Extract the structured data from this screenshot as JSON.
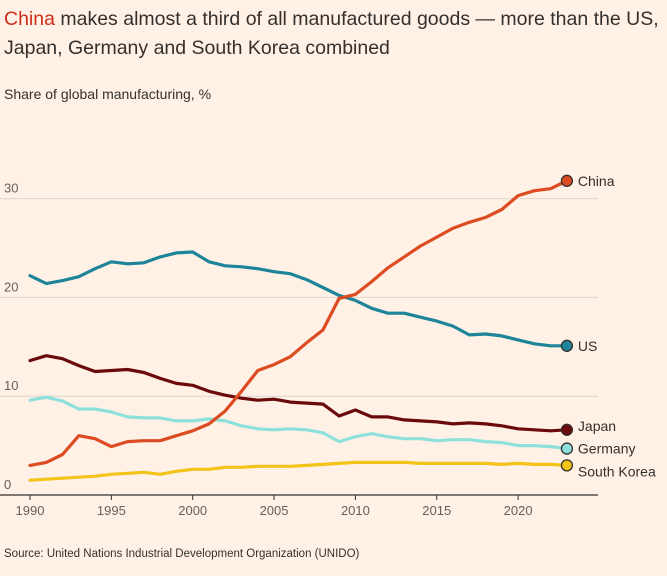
{
  "header": {
    "title_highlight": "China",
    "title_rest": " makes almost a third of all manufactured goods — more than the US, Japan, Germany and South Korea combined",
    "subtitle": "Share of global manufacturing, %"
  },
  "footer": {
    "source": "Source: United Nations Industrial Development Organization (UNIDO)"
  },
  "chart_data": {
    "type": "line",
    "ylabel": "Share of global manufacturing, %",
    "xlim": [
      1990,
      2024
    ],
    "ylim": [
      0,
      32
    ],
    "grid": "horizontal",
    "x_ticks": [
      1990,
      1995,
      2000,
      2005,
      2010,
      2015,
      2020
    ],
    "y_ticks": [
      0,
      10,
      20,
      30
    ],
    "x": [
      1990,
      1991,
      1992,
      1993,
      1994,
      1995,
      1996,
      1997,
      1998,
      1999,
      2000,
      2001,
      2002,
      2003,
      2004,
      2005,
      2006,
      2007,
      2008,
      2009,
      2010,
      2011,
      2012,
      2013,
      2014,
      2015,
      2016,
      2017,
      2018,
      2019,
      2020,
      2021,
      2022,
      2023
    ],
    "series": [
      {
        "name": "China",
        "color": "#dd4b22",
        "values": [
          3.0,
          3.3,
          4.1,
          6.0,
          5.7,
          4.9,
          5.4,
          5.5,
          5.5,
          6.0,
          6.5,
          7.2,
          8.5,
          10.5,
          12.6,
          13.2,
          14.0,
          15.4,
          16.7,
          19.9,
          20.3,
          21.6,
          23.0,
          24.1,
          25.2,
          26.1,
          27.0,
          27.6,
          28.1,
          28.9,
          30.3,
          30.8,
          31.0,
          31.8
        ]
      },
      {
        "name": "US",
        "color": "#1e8499",
        "values": [
          22.2,
          21.4,
          21.7,
          22.1,
          22.9,
          23.6,
          23.4,
          23.5,
          24.1,
          24.5,
          24.6,
          23.6,
          23.2,
          23.1,
          22.9,
          22.6,
          22.4,
          21.8,
          21.0,
          20.2,
          19.7,
          18.9,
          18.4,
          18.4,
          18.0,
          17.6,
          17.1,
          16.2,
          16.3,
          16.1,
          15.7,
          15.3,
          15.1,
          15.1
        ]
      },
      {
        "name": "Japan",
        "color": "#6b0a0a",
        "values": [
          13.6,
          14.1,
          13.8,
          13.1,
          12.5,
          12.6,
          12.7,
          12.4,
          11.8,
          11.3,
          11.1,
          10.5,
          10.1,
          9.8,
          9.6,
          9.7,
          9.4,
          9.3,
          9.2,
          8.0,
          8.6,
          7.9,
          7.9,
          7.6,
          7.5,
          7.4,
          7.2,
          7.3,
          7.2,
          7.0,
          6.7,
          6.6,
          6.5,
          6.6
        ]
      },
      {
        "name": "Germany",
        "color": "#8ee1db",
        "values": [
          9.6,
          9.9,
          9.5,
          8.7,
          8.7,
          8.4,
          7.9,
          7.8,
          7.8,
          7.5,
          7.5,
          7.7,
          7.5,
          7.0,
          6.7,
          6.6,
          6.7,
          6.6,
          6.3,
          5.4,
          5.9,
          6.2,
          5.9,
          5.7,
          5.7,
          5.5,
          5.6,
          5.6,
          5.4,
          5.3,
          5.0,
          5.0,
          4.9,
          4.7
        ]
      },
      {
        "name": "South Korea",
        "color": "#f2c318",
        "values": [
          1.5,
          1.6,
          1.7,
          1.8,
          1.9,
          2.1,
          2.2,
          2.3,
          2.1,
          2.4,
          2.6,
          2.6,
          2.8,
          2.8,
          2.9,
          2.9,
          2.9,
          3.0,
          3.1,
          3.2,
          3.3,
          3.3,
          3.3,
          3.3,
          3.2,
          3.2,
          3.2,
          3.2,
          3.2,
          3.1,
          3.2,
          3.1,
          3.1,
          3.0
        ]
      }
    ]
  }
}
